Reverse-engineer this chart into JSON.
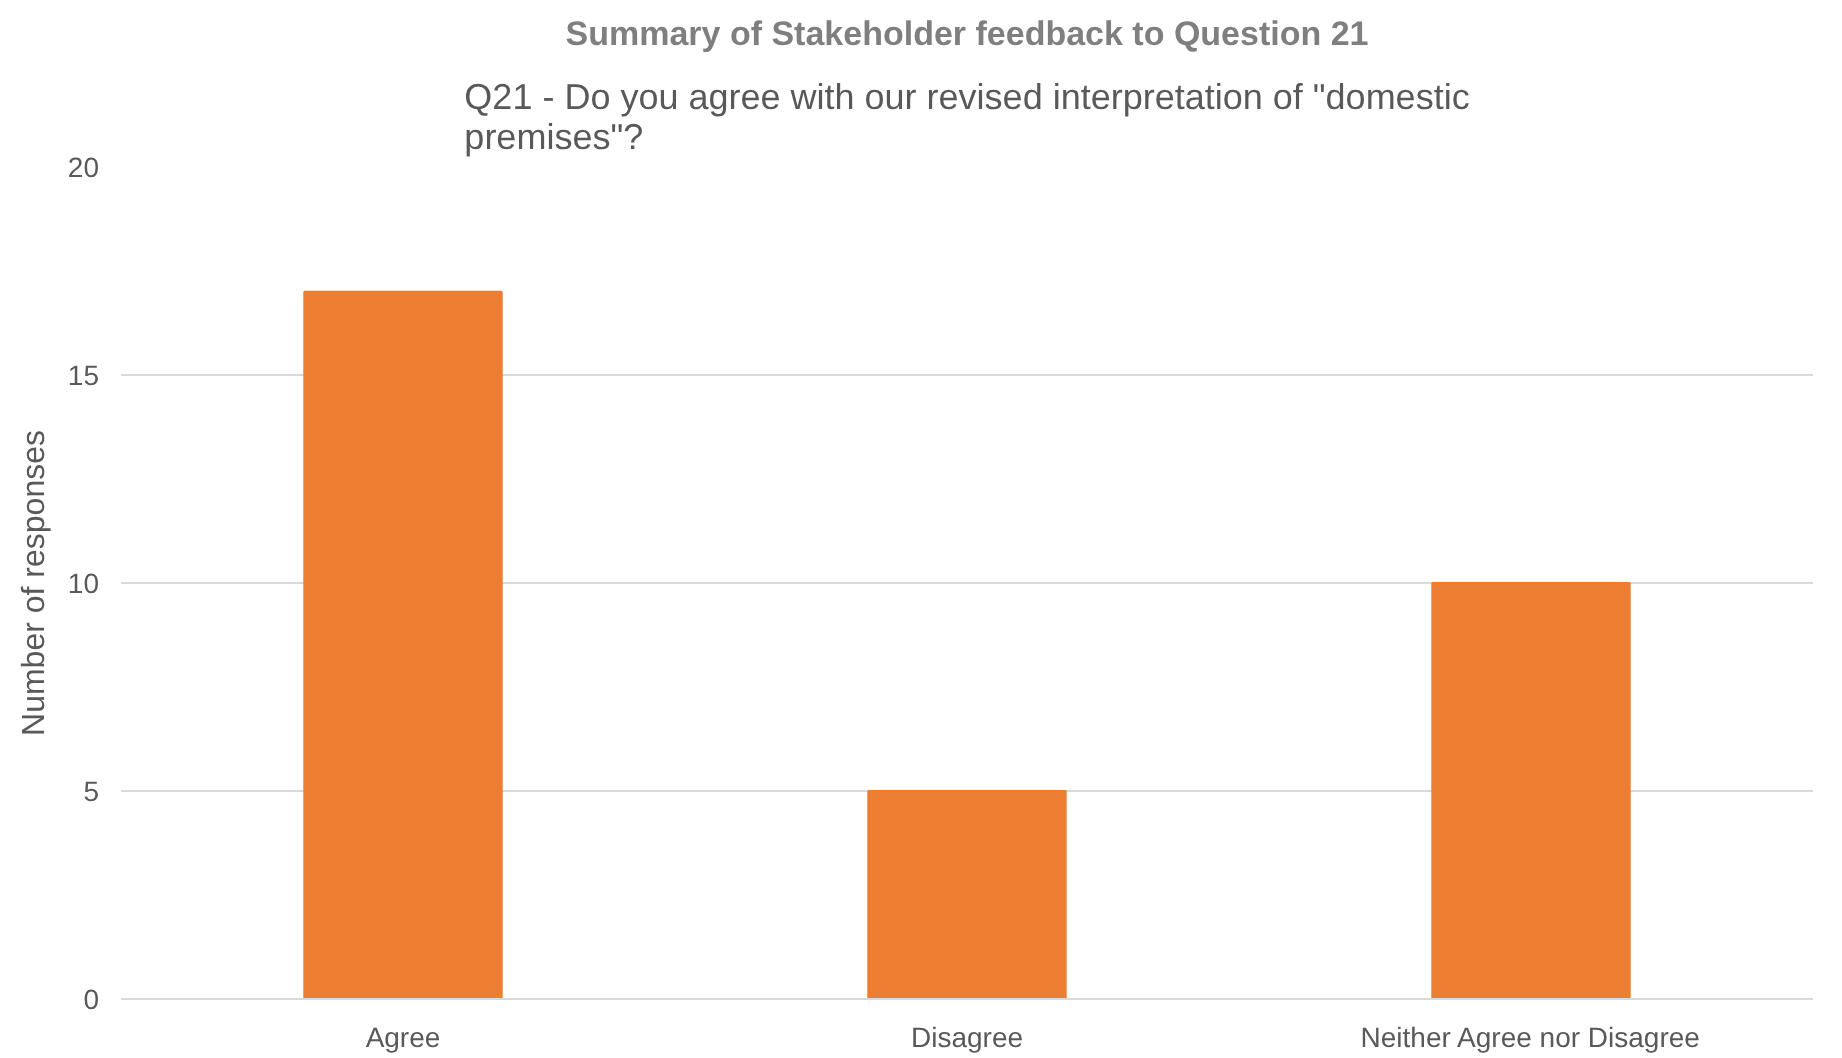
{
  "chart_data": {
    "type": "bar",
    "title": "Q21 - Do you agree with our revised interpretation of \"domestic premises\"?",
    "annotations": [
      "Summary of Stakeholder feedback to Question 21"
    ],
    "ylabel": "Number of responses",
    "categories": [
      "Agree",
      "Disagree",
      "Neither Agree nor Disagree"
    ],
    "values": [
      17,
      5,
      10
    ],
    "color": "#ed7d31",
    "ylim": [
      0,
      20
    ],
    "yticks": [
      0,
      5,
      10,
      15,
      20
    ],
    "grid": "y"
  }
}
